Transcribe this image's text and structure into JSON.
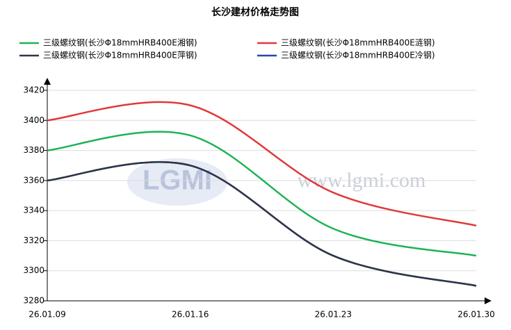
{
  "chart_data": {
    "type": "line",
    "title": "长沙建材价格走势图",
    "watermark_logo": "LGMI",
    "watermark": "www.lgmi.com",
    "categories": [
      "26.01.09",
      "26.01.16",
      "26.01.23",
      "26.01.30"
    ],
    "series": [
      {
        "name": "三级螺纹钢(长沙Φ18mmHRB400E湘钢)",
        "color": "#1db355",
        "values": [
          3380,
          3390,
          3328,
          3310
        ]
      },
      {
        "name": "三级螺纹钢(长沙Φ18mmHRB400E涟钢)",
        "color": "#e0393a",
        "values": [
          3400,
          3410,
          3352,
          3330
        ]
      },
      {
        "name": "三级螺纹钢(长沙Φ18mmHRB400E萍钢)",
        "color": "#2f3545",
        "values": [
          3360,
          3370,
          3310,
          3290
        ]
      },
      {
        "name": "三级螺纹钢(长沙Φ18mmHRB400E冷钢)",
        "color": "#2a44a8",
        "values": [
          3360,
          3370,
          3310,
          3290
        ]
      }
    ],
    "ylim": [
      3280,
      3420
    ],
    "yticks": [
      3280,
      3300,
      3320,
      3340,
      3360,
      3380,
      3400,
      3420
    ],
    "grid": true
  }
}
